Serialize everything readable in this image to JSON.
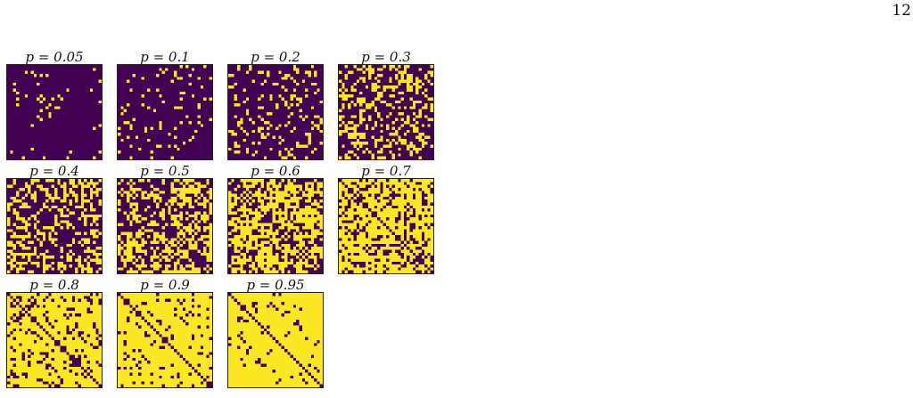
{
  "page": {
    "number": "12"
  },
  "colors": {
    "off": "#440154",
    "on": "#fde725"
  },
  "matrix_size": 32,
  "panels": [
    {
      "label": "p = 0.05",
      "p": 0.05
    },
    {
      "label": "p = 0.1",
      "p": 0.1
    },
    {
      "label": "p = 0.2",
      "p": 0.2
    },
    {
      "label": "p = 0.3",
      "p": 0.3
    },
    {
      "label": "p = 0.4",
      "p": 0.4
    },
    {
      "label": "p = 0.5",
      "p": 0.5
    },
    {
      "label": "p = 0.6",
      "p": 0.6
    },
    {
      "label": "p = 0.7",
      "p": 0.7
    },
    {
      "label": "p = 0.8",
      "p": 0.8
    },
    {
      "label": "p = 0.9",
      "p": 0.9
    },
    {
      "label": "p = 0.95",
      "p": 0.95
    }
  ]
}
